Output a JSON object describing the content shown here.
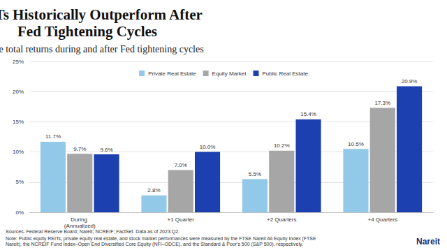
{
  "chart_data": {
    "type": "bar",
    "title": "REITs Historically Outperform After Fed Tightening Cycles",
    "subtitle": "Average total returns during and after Fed tightening cycles",
    "categories": [
      "During (Annualized)",
      "+1 Quarter",
      "+2 Quarters",
      "+4 Quarters"
    ],
    "series": [
      {
        "name": "Private Real Estate",
        "color": "#92c9e8",
        "values": [
          11.7,
          2.8,
          5.5,
          10.5
        ],
        "value_labels": [
          "11.7%",
          "2.8%",
          "5.5%",
          "10.5%"
        ]
      },
      {
        "name": "Equity Market",
        "color": "#a6a6a6",
        "values": [
          9.7,
          7.0,
          10.2,
          17.3
        ],
        "value_labels": [
          "9.7%",
          "7.0%",
          "10.2%",
          "17.3%"
        ]
      },
      {
        "name": "Public Real Estate",
        "color": "#1d40b0",
        "values": [
          9.6,
          10.0,
          15.4,
          20.9
        ],
        "value_labels": [
          "9.6%",
          "10.0%",
          "15.4%",
          "20.9%"
        ]
      }
    ],
    "ylim": [
      0,
      25
    ],
    "yticks": [
      {
        "value": 0,
        "label": "0%"
      },
      {
        "value": 5,
        "label": "5%"
      },
      {
        "value": 10,
        "label": "10%"
      },
      {
        "value": 15,
        "label": "15%"
      },
      {
        "value": 20,
        "label": "20%"
      },
      {
        "value": 25,
        "label": "25%"
      }
    ],
    "grid": true,
    "legend": "top",
    "data_labels": true,
    "annotations": [
      "Sources: Federal Reserve Board; Nareit; NCREIF; FactSet. Data as of 2023:Q2.",
      "Note: Public equity REITs, private equity real estate, and stock market performances were measured by the FTSE Nareit All Equity Index (FTSE Nareit), the NCREIF Fund Index–Open End Diversified Core Equity (NFI–ODCE), and the Standard & Poor's 500 (S&P 500), respectively.",
      "Nareit"
    ]
  }
}
